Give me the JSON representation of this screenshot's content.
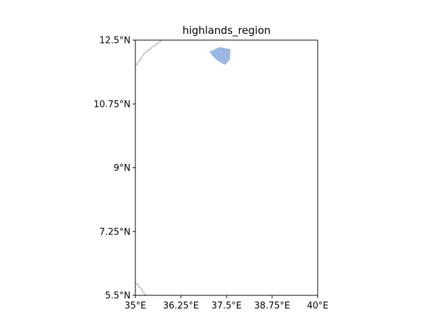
{
  "map": {
    "title": "highlands_region",
    "extent": {
      "lon_min": 35,
      "lon_max": 40,
      "lat_min": 5.5,
      "lat_max": 12.5
    },
    "x_ticks": [
      {
        "value": 35,
        "label": "35°E"
      },
      {
        "value": 36.25,
        "label": "36.25°E"
      },
      {
        "value": 37.5,
        "label": "37.5°E"
      },
      {
        "value": 38.75,
        "label": "38.75°E"
      },
      {
        "value": 40,
        "label": "40°E"
      }
    ],
    "y_ticks": [
      {
        "value": 5.5,
        "label": "5.5°N"
      },
      {
        "value": 7.25,
        "label": "7.25°N"
      },
      {
        "value": 9,
        "label": "9°N"
      },
      {
        "value": 10.75,
        "label": "10.75°N"
      },
      {
        "value": 12.5,
        "label": "12.5°N"
      }
    ],
    "lake": {
      "name": "lake",
      "color": "#9ab7e3",
      "polygon": [
        [
          37.05,
          12.18
        ],
        [
          37.32,
          12.3
        ],
        [
          37.6,
          12.24
        ],
        [
          37.58,
          11.96
        ],
        [
          37.45,
          11.83
        ],
        [
          37.25,
          11.95
        ],
        [
          37.12,
          12.08
        ]
      ]
    },
    "borders": [
      {
        "name": "border-northwest",
        "style": "dotted",
        "points": [
          [
            35.0,
            11.78
          ],
          [
            35.25,
            12.14
          ],
          [
            35.72,
            12.5
          ]
        ]
      },
      {
        "name": "border-southwest",
        "style": "dotted",
        "points": [
          [
            35.0,
            5.86
          ],
          [
            35.18,
            5.65
          ],
          [
            35.28,
            5.5
          ]
        ]
      }
    ]
  }
}
